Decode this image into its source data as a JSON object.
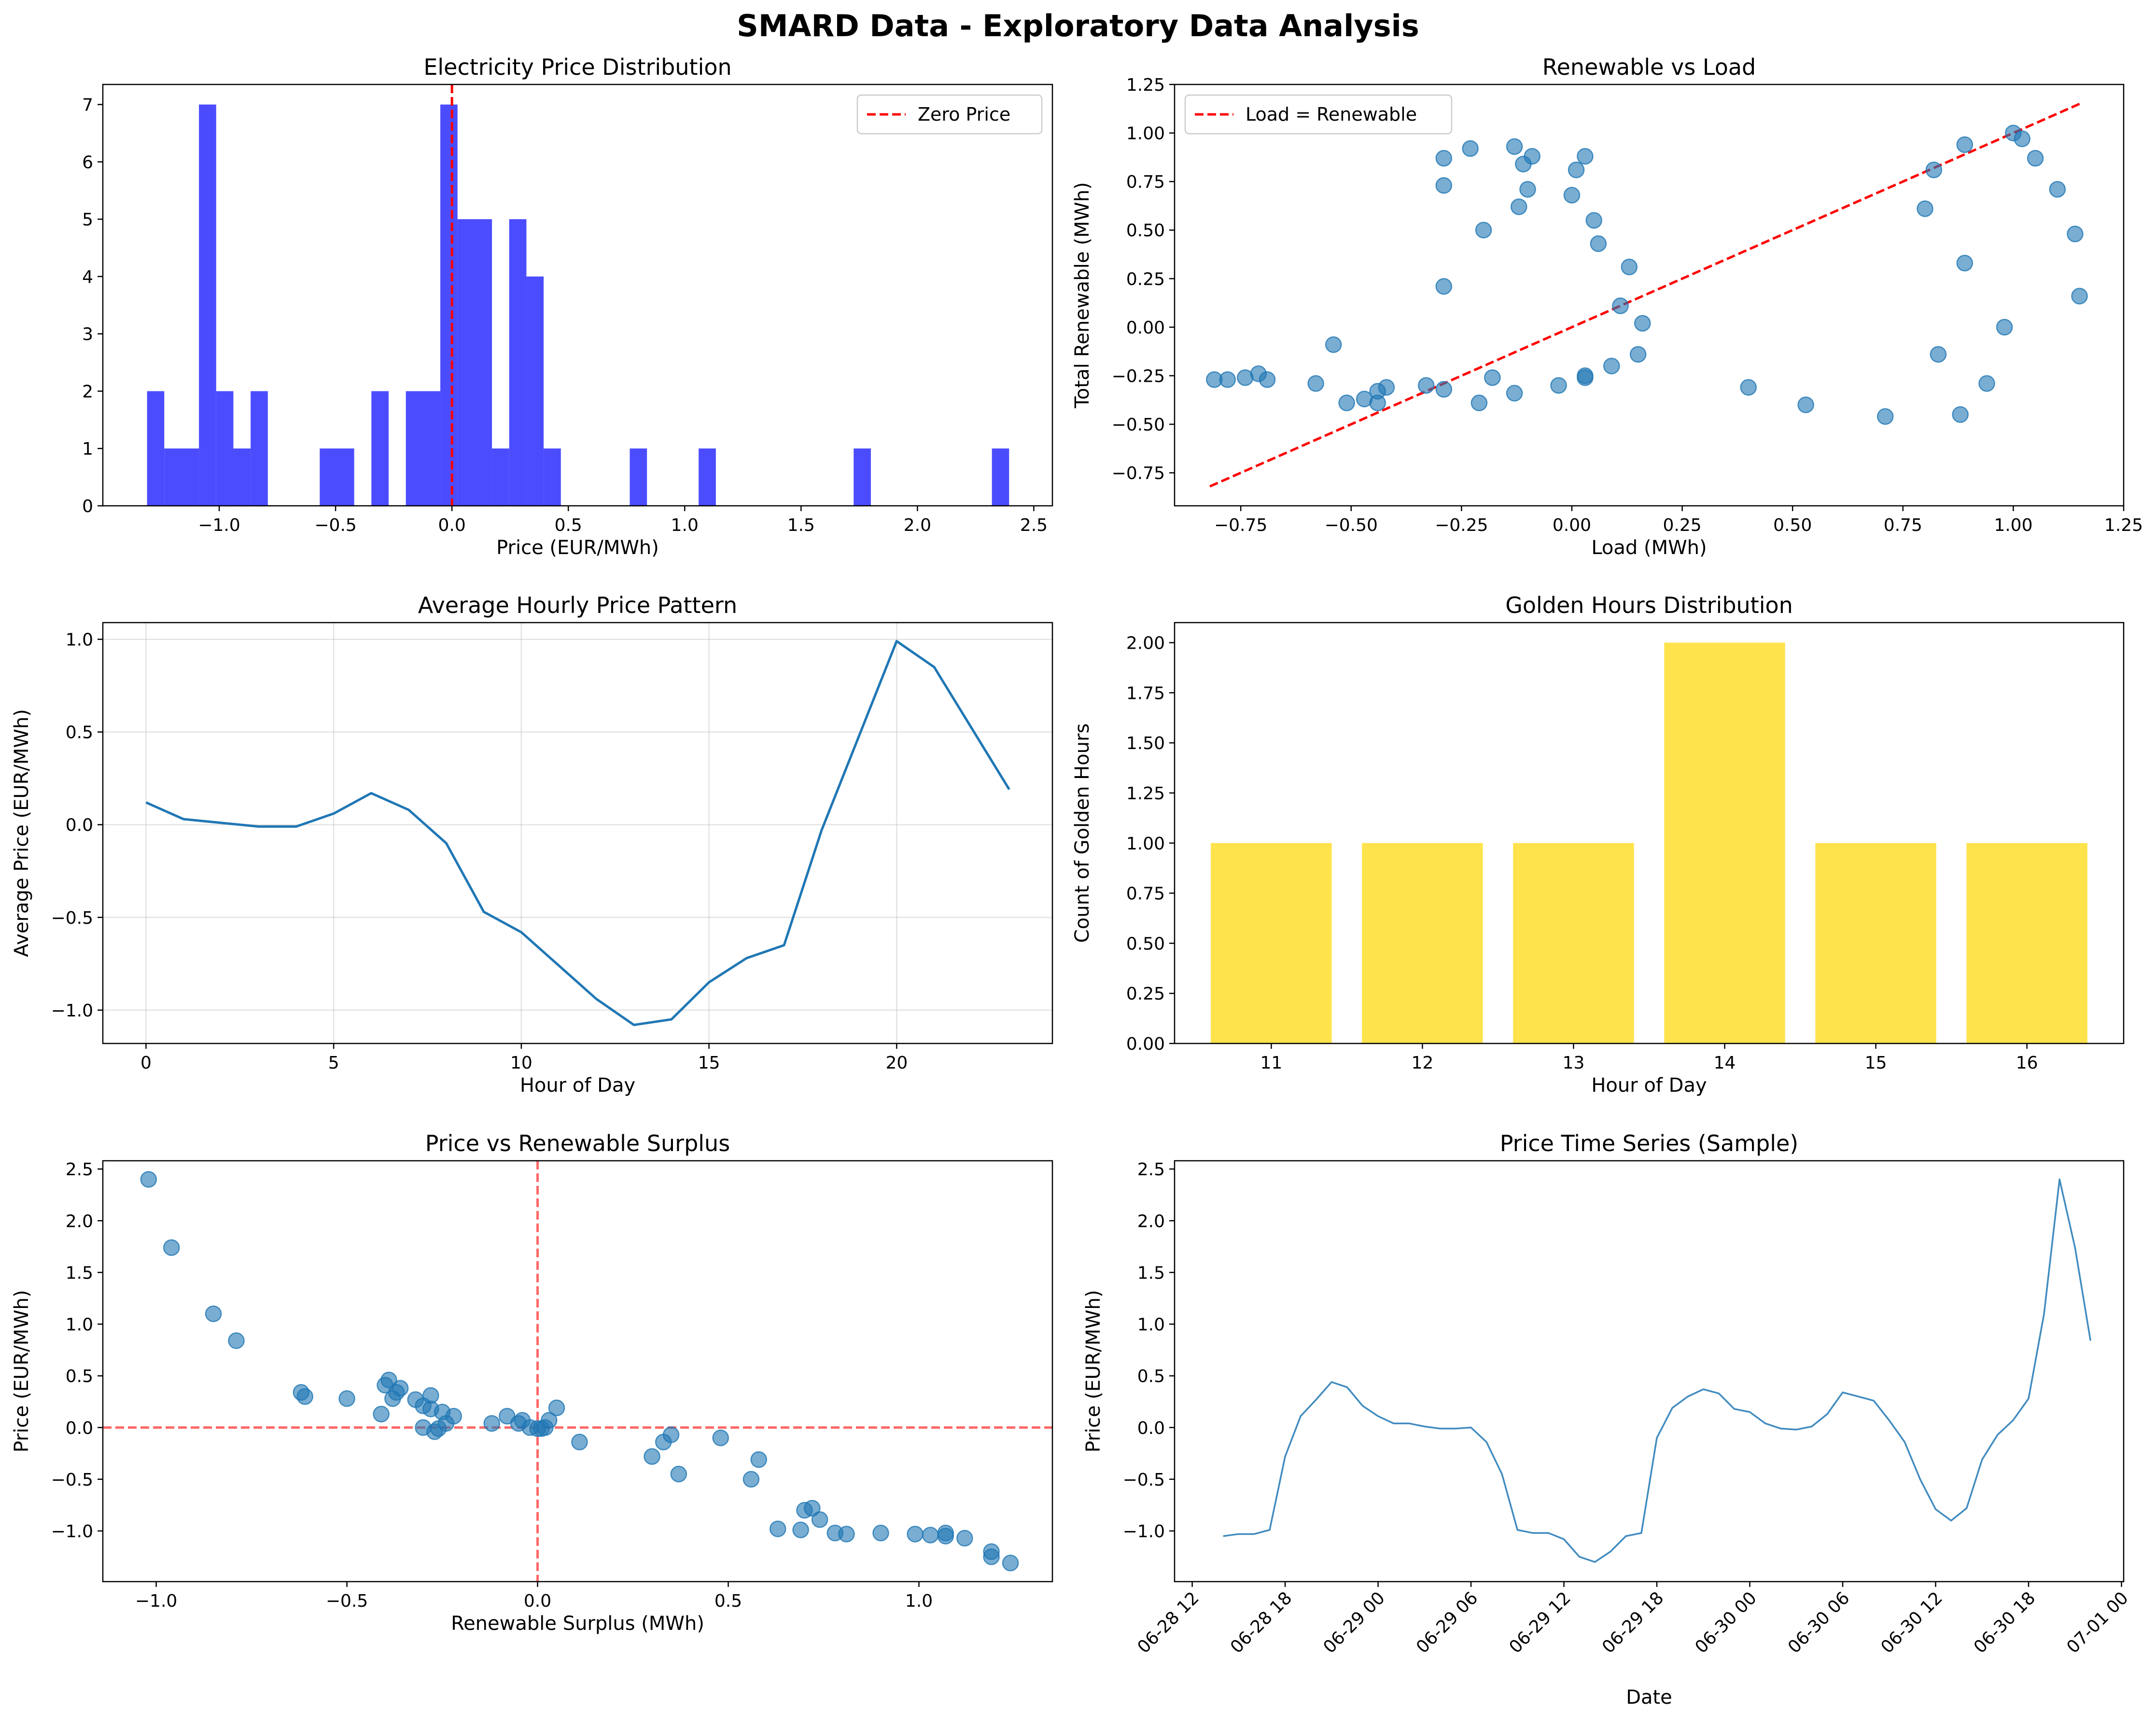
{
  "figure": {
    "suptitle": "SMARD Data - Exploratory Data Analysis"
  },
  "chart_data": [
    {
      "id": "price-distribution",
      "type": "bar",
      "title": "Electricity Price Distribution",
      "xlabel": "Price (EUR/MWh)",
      "ylabel": "",
      "xlim": [
        -1.5,
        2.58
      ],
      "ylim": [
        0,
        7.35
      ],
      "xticks": [
        -1.0,
        -0.5,
        0.0,
        0.5,
        1.0,
        1.5,
        2.0,
        2.5
      ],
      "xtick_labels": [
        "−1.0",
        "−0.5",
        "0.0",
        "0.5",
        "1.0",
        "1.5",
        "2.0",
        "2.5"
      ],
      "yticks": [
        0,
        1,
        2,
        3,
        4,
        5,
        6,
        7
      ],
      "ytick_labels": [
        "0",
        "1",
        "2",
        "3",
        "4",
        "5",
        "6",
        "7"
      ],
      "bin_start": -1.31,
      "bin_width": 0.0743,
      "counts": [
        2,
        1,
        1,
        1,
        7,
        2,
        1,
        2,
        0,
        0,
        0,
        0,
        1,
        1,
        0,
        1,
        0,
        2,
        2,
        7,
        5,
        5,
        1,
        5,
        4,
        1,
        0,
        0,
        0,
        0,
        1,
        0,
        0,
        1,
        0,
        0,
        0,
        0,
        0,
        0,
        0,
        0,
        0,
        0,
        1,
        0,
        0,
        0,
        0,
        0,
        0,
        0,
        0,
        0,
        0,
        0,
        0,
        0,
        0,
        0,
        0,
        0,
        0,
        0,
        0,
        0,
        0,
        0,
        0,
        0,
        0,
        0,
        0,
        0,
        0,
        0,
        0,
        0,
        0,
        0
      ],
      "bars": [
        {
          "x0": -1.31,
          "x1": -1.236,
          "value": 2
        },
        {
          "x0": -1.236,
          "x1": -1.087,
          "value": 1
        },
        {
          "x0": -1.087,
          "x1": -1.013,
          "value": 7
        },
        {
          "x0": -1.013,
          "x1": -0.939,
          "value": 2
        },
        {
          "x0": -0.939,
          "x1": -0.865,
          "value": 1
        },
        {
          "x0": -0.865,
          "x1": -0.791,
          "value": 2
        },
        {
          "x0": -0.568,
          "x1": -0.42,
          "value": 1
        },
        {
          "x0": -0.346,
          "x1": -0.272,
          "value": 2
        },
        {
          "x0": -0.198,
          "x1": -0.05,
          "value": 2
        },
        {
          "x0": -0.05,
          "x1": 0.024,
          "value": 7
        },
        {
          "x0": 0.024,
          "x1": 0.172,
          "value": 5
        },
        {
          "x0": 0.172,
          "x1": 0.246,
          "value": 1
        },
        {
          "x0": 0.246,
          "x1": 0.32,
          "value": 5
        },
        {
          "x0": 0.32,
          "x1": 0.394,
          "value": 4
        },
        {
          "x0": 0.394,
          "x1": 0.468,
          "value": 1
        },
        {
          "x0": 0.764,
          "x1": 0.838,
          "value": 1
        },
        {
          "x0": 1.06,
          "x1": 1.134,
          "value": 1
        },
        {
          "x0": 1.726,
          "x1": 1.8,
          "value": 1
        },
        {
          "x0": 2.32,
          "x1": 2.394,
          "value": 1
        }
      ],
      "bar_color": "#0000ff",
      "reference_line": {
        "x": 0.0,
        "label": "Zero Price",
        "color": "#ff0000"
      },
      "legend": {
        "position": "top-right",
        "entries": [
          "Zero Price"
        ]
      }
    },
    {
      "id": "renewable-vs-load",
      "type": "scatter",
      "title": "Renewable vs Load",
      "xlabel": "Load (MWh)",
      "ylabel": "Total Renewable (MWh)",
      "xlim": [
        -0.9,
        1.25
      ],
      "ylim": [
        -0.92,
        1.25
      ],
      "xticks": [
        -0.75,
        -0.5,
        -0.25,
        0.0,
        0.25,
        0.5,
        0.75,
        1.0,
        1.25
      ],
      "xtick_labels": [
        "−0.75",
        "−0.50",
        "−0.25",
        "0.00",
        "0.25",
        "0.50",
        "0.75",
        "1.00",
        "1.25"
      ],
      "yticks": [
        -0.75,
        -0.5,
        -0.25,
        0.0,
        0.25,
        0.5,
        0.75,
        1.0,
        1.25
      ],
      "ytick_labels": [
        "−0.75",
        "−0.50",
        "−0.25",
        "0.00",
        "0.25",
        "0.50",
        "0.75",
        "1.00",
        "1.25"
      ],
      "points": [
        [
          -0.81,
          -0.27
        ],
        [
          -0.78,
          -0.27
        ],
        [
          -0.74,
          -0.26
        ],
        [
          -0.71,
          -0.24
        ],
        [
          -0.69,
          -0.27
        ],
        [
          -0.58,
          -0.29
        ],
        [
          -0.54,
          -0.09
        ],
        [
          -0.51,
          -0.39
        ],
        [
          -0.47,
          -0.37
        ],
        [
          -0.44,
          -0.39
        ],
        [
          -0.44,
          -0.33
        ],
        [
          -0.42,
          -0.31
        ],
        [
          -0.33,
          -0.3
        ],
        [
          -0.29,
          -0.32
        ],
        [
          -0.29,
          0.21
        ],
        [
          -0.29,
          0.73
        ],
        [
          -0.29,
          0.87
        ],
        [
          -0.23,
          0.92
        ],
        [
          -0.21,
          -0.39
        ],
        [
          -0.2,
          0.5
        ],
        [
          -0.18,
          -0.26
        ],
        [
          -0.13,
          -0.34
        ],
        [
          -0.13,
          0.93
        ],
        [
          -0.12,
          0.62
        ],
        [
          -0.11,
          0.84
        ],
        [
          -0.1,
          0.71
        ],
        [
          -0.09,
          0.88
        ],
        [
          -0.03,
          -0.3
        ],
        [
          0.0,
          0.68
        ],
        [
          0.01,
          0.81
        ],
        [
          0.03,
          -0.25
        ],
        [
          0.03,
          -0.26
        ],
        [
          0.03,
          0.88
        ],
        [
          0.05,
          0.55
        ],
        [
          0.06,
          0.43
        ],
        [
          0.09,
          -0.2
        ],
        [
          0.11,
          0.11
        ],
        [
          0.13,
          0.31
        ],
        [
          0.15,
          -0.14
        ],
        [
          0.16,
          0.02
        ],
        [
          0.4,
          -0.31
        ],
        [
          0.53,
          -0.4
        ],
        [
          0.71,
          -0.46
        ],
        [
          0.8,
          0.61
        ],
        [
          0.82,
          0.81
        ],
        [
          0.83,
          -0.14
        ],
        [
          0.88,
          -0.45
        ],
        [
          0.89,
          0.33
        ],
        [
          0.89,
          0.94
        ],
        [
          0.94,
          -0.29
        ],
        [
          0.98,
          0.0
        ],
        [
          1.0,
          1.0
        ],
        [
          1.02,
          0.97
        ],
        [
          1.05,
          0.87
        ],
        [
          1.1,
          0.71
        ],
        [
          1.14,
          0.48
        ],
        [
          1.15,
          0.16
        ]
      ],
      "point_color": "#1f77b4",
      "reference_line": {
        "from": [
          -0.82,
          -0.82
        ],
        "to": [
          1.15,
          1.15
        ],
        "label": "Load = Renewable",
        "color": "#ff0000"
      },
      "legend": {
        "position": "top-left",
        "entries": [
          "Load = Renewable"
        ]
      }
    },
    {
      "id": "hourly-price-pattern",
      "type": "line",
      "title": "Average Hourly Price Pattern",
      "xlabel": "Hour of Day",
      "ylabel": "Average Price (EUR/MWh)",
      "xlim": [
        -1.15,
        24.15
      ],
      "ylim": [
        -1.18,
        1.09
      ],
      "xticks": [
        0,
        5,
        10,
        15,
        20
      ],
      "xtick_labels": [
        "0",
        "5",
        "10",
        "15",
        "20"
      ],
      "yticks": [
        -1.0,
        -0.5,
        0.0,
        0.5,
        1.0
      ],
      "ytick_labels": [
        "−1.0",
        "−0.5",
        "0.0",
        "0.5",
        "1.0"
      ],
      "grid": true,
      "x": [
        0,
        1,
        2,
        3,
        4,
        5,
        6,
        7,
        8,
        9,
        10,
        11,
        12,
        13,
        14,
        15,
        16,
        17,
        18,
        19,
        20,
        21,
        22,
        23
      ],
      "values": [
        0.12,
        0.03,
        0.01,
        -0.01,
        -0.01,
        0.06,
        0.17,
        0.08,
        -0.1,
        -0.47,
        -0.58,
        -0.76,
        -0.94,
        -1.08,
        -1.05,
        -0.85,
        -0.72,
        -0.65,
        -0.03,
        0.48,
        0.99,
        0.85,
        0.52,
        0.19
      ],
      "line_color": "#1f77b4"
    },
    {
      "id": "golden-hours",
      "type": "bar",
      "title": "Golden Hours Distribution",
      "xlabel": "Hour of Day",
      "ylabel": "Count of Golden Hours",
      "xlim": [
        10.36,
        16.64
      ],
      "ylim": [
        0,
        2.1
      ],
      "categories": [
        "11",
        "12",
        "13",
        "14",
        "15",
        "16"
      ],
      "x": [
        11,
        12,
        13,
        14,
        15,
        16
      ],
      "values": [
        1,
        1,
        1,
        2,
        1,
        1
      ],
      "yticks": [
        0,
        0.25,
        0.5,
        0.75,
        1.0,
        1.25,
        1.5,
        1.75,
        2.0
      ],
      "ytick_labels": [
        "0.00",
        "0.25",
        "0.50",
        "0.75",
        "1.00",
        "1.25",
        "1.50",
        "1.75",
        "2.00"
      ],
      "bar_color": "#ffd700"
    },
    {
      "id": "price-vs-surplus",
      "type": "scatter",
      "title": "Price vs Renewable Surplus",
      "xlabel": "Renewable Surplus (MWh)",
      "ylabel": "Price (EUR/MWh)",
      "xlim": [
        -1.14,
        1.35
      ],
      "ylim": [
        -1.49,
        2.58
      ],
      "xticks": [
        -1.0,
        -0.5,
        0.0,
        0.5,
        1.0
      ],
      "xtick_labels": [
        "−1.0",
        "−0.5",
        "0.0",
        "0.5",
        "1.0"
      ],
      "yticks": [
        -1.0,
        -0.5,
        0.0,
        0.5,
        1.0,
        1.5,
        2.0,
        2.5
      ],
      "ytick_labels": [
        "−1.0",
        "−0.5",
        "0.0",
        "0.5",
        "1.0",
        "1.5",
        "2.0",
        "2.5"
      ],
      "points": [
        [
          -1.02,
          2.4
        ],
        [
          -0.96,
          1.74
        ],
        [
          -0.85,
          1.1
        ],
        [
          -0.79,
          0.84
        ],
        [
          -0.62,
          0.34
        ],
        [
          -0.61,
          0.3
        ],
        [
          -0.5,
          0.28
        ],
        [
          -0.41,
          0.13
        ],
        [
          -0.4,
          0.41
        ],
        [
          -0.39,
          0.46
        ],
        [
          -0.38,
          0.28
        ],
        [
          -0.37,
          0.34
        ],
        [
          -0.36,
          0.38
        ],
        [
          -0.32,
          0.27
        ],
        [
          -0.3,
          0.21
        ],
        [
          -0.3,
          0.0
        ],
        [
          -0.28,
          0.18
        ],
        [
          -0.28,
          0.31
        ],
        [
          -0.27,
          -0.04
        ],
        [
          -0.26,
          -0.01
        ],
        [
          -0.25,
          0.15
        ],
        [
          -0.24,
          0.04
        ],
        [
          -0.22,
          0.11
        ],
        [
          -0.12,
          0.04
        ],
        [
          -0.08,
          0.11
        ],
        [
          -0.05,
          0.04
        ],
        [
          -0.04,
          0.07
        ],
        [
          -0.02,
          0.0
        ],
        [
          0.0,
          -0.01
        ],
        [
          0.01,
          -0.01
        ],
        [
          0.02,
          0.0
        ],
        [
          0.03,
          0.07
        ],
        [
          0.05,
          0.19
        ],
        [
          0.11,
          -0.14
        ],
        [
          0.3,
          -0.28
        ],
        [
          0.33,
          -0.14
        ],
        [
          0.35,
          -0.07
        ],
        [
          0.37,
          -0.45
        ],
        [
          0.48,
          -0.1
        ],
        [
          0.56,
          -0.5
        ],
        [
          0.58,
          -0.31
        ],
        [
          0.63,
          -0.98
        ],
        [
          0.69,
          -0.99
        ],
        [
          0.7,
          -0.8
        ],
        [
          0.72,
          -0.78
        ],
        [
          0.74,
          -0.89
        ],
        [
          0.78,
          -1.02
        ],
        [
          0.81,
          -1.03
        ],
        [
          0.9,
          -1.02
        ],
        [
          0.99,
          -1.03
        ],
        [
          1.03,
          -1.04
        ],
        [
          1.07,
          -1.02
        ],
        [
          1.07,
          -1.05
        ],
        [
          1.12,
          -1.07
        ],
        [
          1.19,
          -1.25
        ],
        [
          1.19,
          -1.2
        ],
        [
          1.24,
          -1.31
        ]
      ],
      "point_color": "#1f77b4",
      "reference_lines": [
        {
          "axis": "y",
          "value": 0.0
        },
        {
          "axis": "x",
          "value": 0.0
        }
      ],
      "reference_color": "#ff6666"
    },
    {
      "id": "price-time-series",
      "type": "line",
      "title": "Price Time Series (Sample)",
      "xlabel": "Date",
      "ylabel": "Price (EUR/MWh)",
      "xlim": [
        "2024-06-28 11:00",
        "2024-07-01 00:00"
      ],
      "ylim": [
        -1.49,
        2.58
      ],
      "x_units": "hours after 06-28 00:00",
      "xlim_hours": [
        10.86,
        72.14
      ],
      "xticks_hours": [
        12,
        18,
        24,
        30,
        36,
        42,
        48,
        54,
        60,
        66,
        72
      ],
      "xtick_labels": [
        "06-28 12",
        "06-28 18",
        "06-29 00",
        "06-29 06",
        "06-29 12",
        "06-29 18",
        "06-30 00",
        "06-30 06",
        "06-30 12",
        "06-30 18",
        "07-01 00"
      ],
      "yticks": [
        -1.0,
        -0.5,
        0.0,
        0.5,
        1.0,
        1.5,
        2.0,
        2.5
      ],
      "ytick_labels": [
        "−1.0",
        "−0.5",
        "0.0",
        "0.5",
        "1.0",
        "1.5",
        "2.0",
        "2.5"
      ],
      "start_hour": 14,
      "values": [
        -1.05,
        -1.03,
        -1.03,
        -0.99,
        -0.28,
        0.11,
        0.27,
        0.44,
        0.39,
        0.21,
        0.11,
        0.04,
        0.04,
        0.01,
        -0.01,
        -0.01,
        0.0,
        -0.14,
        -0.45,
        -0.99,
        -1.02,
        -1.02,
        -1.08,
        -1.25,
        -1.3,
        -1.2,
        -1.05,
        -1.02,
        -0.1,
        0.19,
        0.3,
        0.37,
        0.33,
        0.18,
        0.15,
        0.04,
        -0.01,
        -0.02,
        0.01,
        0.13,
        0.34,
        0.3,
        0.26,
        0.07,
        -0.14,
        -0.5,
        -0.79,
        -0.9,
        -0.78,
        -0.31,
        -0.07,
        0.07,
        0.28,
        1.1,
        2.4,
        1.74,
        0.84
      ],
      "line_color": "#1f77b4"
    }
  ]
}
